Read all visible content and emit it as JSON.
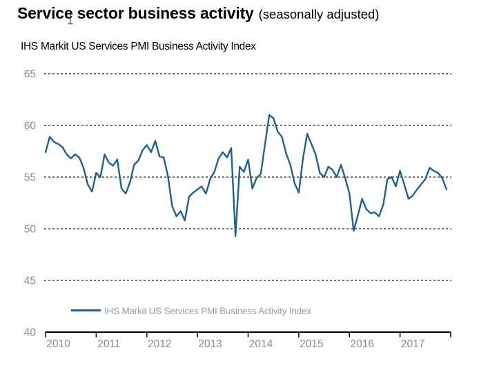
{
  "header": {
    "title": "Service sector business activity",
    "qualifier": "(seasonally adjusted)",
    "axis_title": "IHS Markit US Services PMI Business Activity Index"
  },
  "legend": {
    "label": "IHS Markit US Services PMI Business Activity Index"
  },
  "colors": {
    "series_line": "#20608f",
    "grid_line": "#1a1a1a",
    "axis_line": "#000000",
    "tick_label": "#8c8c8c",
    "legend_text": "#93a0ae"
  },
  "chart_data": {
    "type": "line",
    "title": "Service sector business activity (seasonally adjusted)",
    "ylabel": "IHS Markit US Services PMI Business Activity Index",
    "ylim": [
      40,
      65
    ],
    "y_ticks": [
      40,
      45,
      50,
      55,
      60,
      65
    ],
    "x_tick_labels": [
      "2010",
      "2011",
      "2012",
      "2013",
      "2014",
      "2015",
      "2016",
      "2017"
    ],
    "grid": "horizontal-dashed",
    "legend_position": "bottom-center",
    "frequency": "monthly",
    "start": "2010-01",
    "end": "2017-12",
    "series": [
      {
        "name": "IHS Markit US Services PMI Business Activity Index",
        "values": [
          57.4,
          58.9,
          58.4,
          58.2,
          57.9,
          57.2,
          56.8,
          57.2,
          56.9,
          55.9,
          54.3,
          53.6,
          55.4,
          55.0,
          57.2,
          56.4,
          56.1,
          56.7,
          53.9,
          53.4,
          54.5,
          56.2,
          56.6,
          57.6,
          58.1,
          57.4,
          58.5,
          57.0,
          56.9,
          55.1,
          52.2,
          51.2,
          51.7,
          50.8,
          53.1,
          53.5,
          53.8,
          54.1,
          53.4,
          54.8,
          55.5,
          56.8,
          57.4,
          56.9,
          57.8,
          49.3,
          56.0,
          55.5,
          56.7,
          53.9,
          54.9,
          55.3,
          58.2,
          61.0,
          60.7,
          59.4,
          58.9,
          57.3,
          56.2,
          54.4,
          53.5,
          56.8,
          59.2,
          58.2,
          57.2,
          55.4,
          55.0,
          56.0,
          55.7,
          55.0,
          56.2,
          54.9,
          53.4,
          49.8,
          51.3,
          52.9,
          51.9,
          51.5,
          51.6,
          51.2,
          52.3,
          54.8,
          55.0,
          54.1,
          55.6,
          54.3,
          52.9,
          53.2,
          53.8,
          54.3,
          54.8,
          55.9,
          55.6,
          55.4,
          54.9,
          53.8
        ]
      }
    ]
  }
}
